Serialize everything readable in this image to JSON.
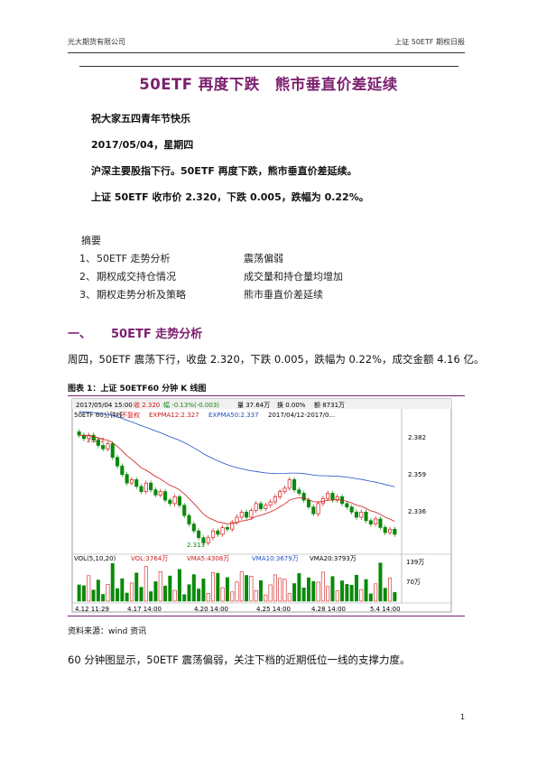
{
  "header": {
    "company": "光大期货有限公司",
    "report": "上证 50ETF 期权日报"
  },
  "title": "50ETF 再度下跌　熊市垂直价差延续",
  "greeting": "祝大家五四青年节快乐",
  "date": "2017/05/04，星期四",
  "headline1": "沪深主要股指下行。50ETF 再度下跌，熊市垂直价差延续。",
  "headline2": "上证 50ETF 收市价 2.320，下跌 0.005，跌幅为 0.22%。",
  "summary": {
    "label": "摘要",
    "items": [
      {
        "num": "1、",
        "topic": "50ETF 走势分析",
        "desc": "震荡偏弱"
      },
      {
        "num": "2、",
        "topic": "期权成交持仓情况",
        "desc": "成交量和持仓量均增加"
      },
      {
        "num": "3、",
        "topic": "期权走势分析及策略",
        "desc": "熊市垂直价差延续"
      }
    ]
  },
  "section1": {
    "num": "一、",
    "title": "50ETF 走势分析"
  },
  "paragraph1": "周四，50ETF 震荡下行，收盘 2.320，下跌 0.005，跌幅为 0.22%，成交金额 4.16 亿。",
  "figure": {
    "caption": "图表 1：上证 50ETF60 分钟 K 线图",
    "source": "资料来源：wind 资讯"
  },
  "chart": {
    "infobar": [
      "2017/05/04 15:00",
      "收 2.320",
      "幅 -0.13%(-0.003)",
      "量 37.64万",
      "换 0.00%",
      "额 8731万"
    ],
    "line2": {
      "name": "50ETF 60分钟线",
      "adj": "不复权",
      "ema12": "EXPMA12:2.327",
      "ema50": "EXPMA50:2.337",
      "range": "2017/04/12-2017/0..."
    },
    "hi_label": "2.382",
    "lo_label": "2.313",
    "yticks": [
      "2.382",
      "2.359",
      "2.336"
    ],
    "vol_line": {
      "name": "VOL(5,10,20)",
      "vol": "VOL:3764万",
      "ma5": "VMA5:4308万",
      "ma10": "VMA10:3679万",
      "ma20": "VMA20:3793万"
    },
    "vol_ticks": [
      "139万",
      "70万"
    ],
    "xticks": [
      "4.12 11:29",
      "4.17 14:00",
      "4.20 14:00",
      "4.25 14:00",
      "4.28 14:00",
      "5.4 14:00"
    ],
    "colors": {
      "up": "#d01818",
      "down": "#0a8a0a",
      "ema12": "#d01818",
      "ema50": "#2050c0",
      "accent": "#7b1f6e"
    }
  },
  "chart_data": {
    "type": "candlestick",
    "closes": [
      2.378,
      2.376,
      2.378,
      2.375,
      2.372,
      2.37,
      2.373,
      2.365,
      2.36,
      2.355,
      2.35,
      2.352,
      2.348,
      2.345,
      2.35,
      2.346,
      2.343,
      2.345,
      2.34,
      2.338,
      2.342,
      2.337,
      2.331,
      2.326,
      2.322,
      2.318,
      2.315,
      2.318,
      2.322,
      2.32,
      2.324,
      2.323,
      2.327,
      2.33,
      2.333,
      2.33,
      2.334,
      2.338,
      2.335,
      2.337,
      2.339,
      2.342,
      2.345,
      2.347,
      2.352,
      2.346,
      2.344,
      2.34,
      2.336,
      2.332,
      2.338,
      2.341,
      2.344,
      2.34,
      2.342,
      2.338,
      2.336,
      2.333,
      2.33,
      2.333,
      2.328,
      2.326,
      2.329,
      2.324,
      2.321,
      2.323,
      2.32
    ],
    "ema12": 2.327,
    "ema50": 2.337,
    "high": 2.382,
    "low": 2.313,
    "ylim": [
      2.311,
      2.386
    ],
    "vol_ylim": [
      0,
      160
    ]
  },
  "page_number": "1"
}
